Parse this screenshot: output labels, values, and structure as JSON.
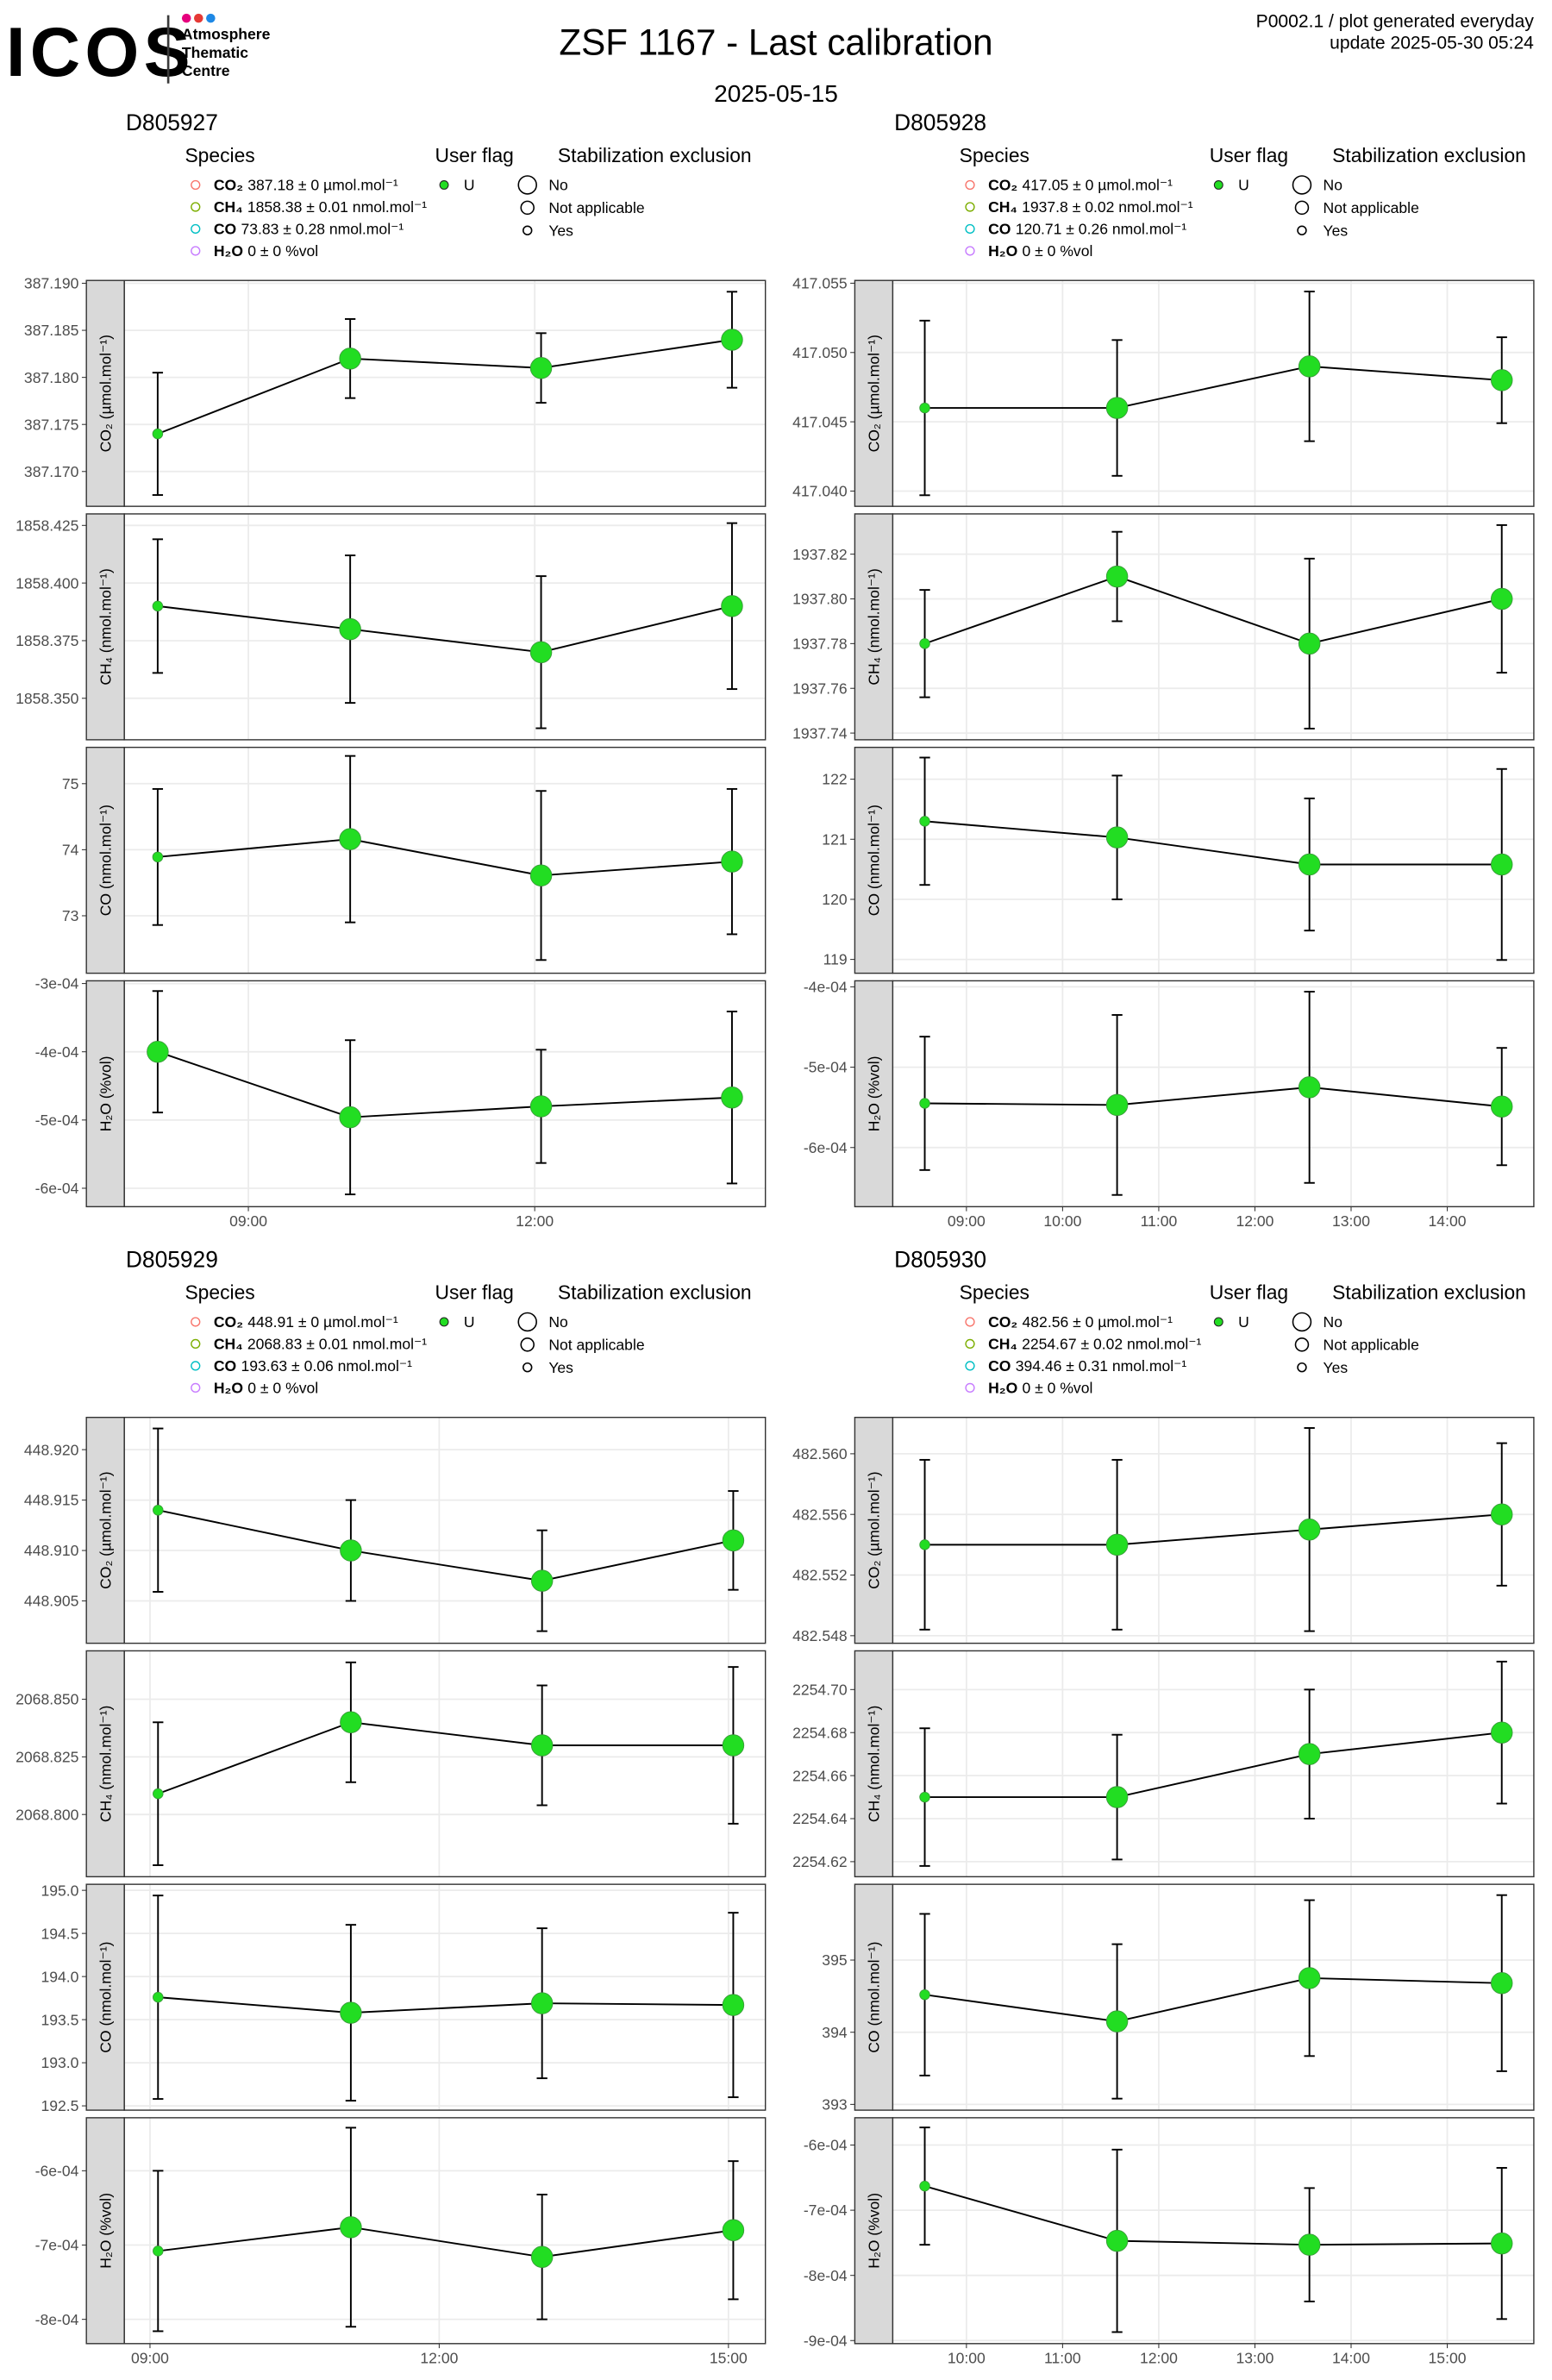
{
  "header": {
    "logo": "ICOS",
    "logo_sub": [
      "Atmosphere",
      "Thematic",
      "Centre"
    ],
    "title": "ZSF 1167 - Last calibration",
    "subtitle": "2025-05-15",
    "note": "P0002.1 / plot generated everyday",
    "update": "update  2025-05-30 05:24"
  },
  "chart_data": [
    {
      "type": "line",
      "title": "D805927",
      "legend": {
        "species_title": "Species",
        "species": [
          {
            "name": "CO₂",
            "text": "387.18 ± 0 µmol.mol⁻¹",
            "color": "#f8766d"
          },
          {
            "name": "CH₄",
            "text": "1858.38 ± 0.01 nmol.mol⁻¹",
            "color": "#7cae00"
          },
          {
            "name": "CO",
            "text": "73.83 ± 0.28 nmol.mol⁻¹",
            "color": "#00bfc4"
          },
          {
            "name": "H₂O",
            "text": "0 ± 0 %vol",
            "color": "#c77cff"
          }
        ],
        "flag_title": "User flag",
        "flags": [
          {
            "name": "U",
            "color": "#22dd22"
          }
        ],
        "exclusion_title": "Stabilization exclusion",
        "exclusion": [
          "No",
          "Not applicable",
          "Yes"
        ]
      },
      "x": [
        "08:03",
        "10:04",
        "12:04",
        "14:04"
      ],
      "xlim": [
        "07:42",
        "14:25"
      ],
      "xticks": [
        "09:00",
        "12:00"
      ],
      "grid": true,
      "panels": [
        {
          "ylabel": "CO₂ (µmol.mol⁻¹)",
          "ylim": [
            387.1663,
            387.1903
          ],
          "yticks": [
            {
              "value": 387.17,
              "label": "387.170"
            },
            387.175,
            {
              "value": 387.18,
              "label": "387.180"
            },
            387.185,
            {
              "value": 387.19,
              "label": "387.190"
            }
          ],
          "values": [
            387.174,
            387.182,
            387.181,
            387.184
          ],
          "errors": [
            0.0065,
            0.0042,
            0.0037,
            0.0051
          ],
          "exclusion": [
            "Yes",
            "No",
            "No",
            "No"
          ]
        },
        {
          "ylabel": "CH₄ (nmol.mol⁻¹)",
          "ylim": [
            1858.332,
            1858.43
          ],
          "yticks": [
            {
              "value": 1858.35,
              "label": "1858.350"
            },
            1858.375,
            {
              "value": 1858.4,
              "label": "1858.400"
            },
            1858.425
          ],
          "values": [
            1858.39,
            1858.38,
            1858.37,
            1858.39
          ],
          "errors": [
            0.029,
            0.032,
            0.033,
            0.036
          ],
          "exclusion": [
            "Yes",
            "No",
            "No",
            "No"
          ]
        },
        {
          "ylabel": "CO (nmol.mol⁻¹)",
          "ylim": [
            72.13,
            75.55
          ],
          "yticks": [
            73,
            74,
            75
          ],
          "values": [
            73.89,
            74.16,
            73.61,
            73.82
          ],
          "errors": [
            1.03,
            1.26,
            1.28,
            1.1
          ],
          "exclusion": [
            "Yes",
            "No",
            "No",
            "No"
          ]
        },
        {
          "ylabel": "H₂O (%vol)",
          "ylim": [
            -0.000627,
            -0.000296
          ],
          "yticks": [
            {
              "value": -0.0006,
              "label": "-6e-04"
            },
            {
              "value": -0.0005,
              "label": "-5e-04"
            },
            {
              "value": -0.0004,
              "label": "-4e-04"
            },
            {
              "value": -0.0003,
              "label": "-3e-04"
            }
          ],
          "values": [
            -0.0004,
            -0.000496,
            -0.00048,
            -0.000467
          ],
          "errors": [
            8.9e-05,
            0.000113,
            8.3e-05,
            0.000126
          ],
          "exclusion": [
            "No",
            "No",
            "No",
            "No"
          ]
        }
      ]
    },
    {
      "type": "line",
      "title": "D805928",
      "legend": {
        "species_title": "Species",
        "species": [
          {
            "name": "CO₂",
            "text": "417.05 ± 0 µmol.mol⁻¹",
            "color": "#f8766d"
          },
          {
            "name": "CH₄",
            "text": "1937.8 ± 0.02 nmol.mol⁻¹",
            "color": "#7cae00"
          },
          {
            "name": "CO",
            "text": "120.71 ± 0.26 nmol.mol⁻¹",
            "color": "#00bfc4"
          },
          {
            "name": "H₂O",
            "text": "0 ± 0 %vol",
            "color": "#c77cff"
          }
        ],
        "flag_title": "User flag",
        "flags": [
          {
            "name": "U",
            "color": "#22dd22"
          }
        ],
        "exclusion_title": "Stabilization exclusion",
        "exclusion": [
          "No",
          "Not applicable",
          "Yes"
        ]
      },
      "x": [
        "08:34",
        "10:34",
        "12:34",
        "14:34"
      ],
      "xlim": [
        "08:14",
        "14:54"
      ],
      "xticks": [
        "09:00",
        "10:00",
        "11:00",
        "12:00",
        "13:00",
        "14:00"
      ],
      "grid": true,
      "panels": [
        {
          "ylabel": "CO₂ (µmol.mol⁻¹)",
          "ylim": [
            417.0389,
            417.0552
          ],
          "yticks": [
            {
              "value": 417.04,
              "label": "417.040"
            },
            417.045,
            {
              "value": 417.05,
              "label": "417.050"
            },
            417.055
          ],
          "values": [
            417.046,
            417.046,
            417.049,
            417.048
          ],
          "errors": [
            0.0063,
            0.0049,
            0.0054,
            0.0031
          ],
          "exclusion": [
            "Yes",
            "No",
            "No",
            "No"
          ]
        },
        {
          "ylabel": "CH₄ (nmol.mol⁻¹)",
          "ylim": [
            1937.737,
            1937.838
          ],
          "yticks": [
            1937.74,
            1937.76,
            1937.78,
            {
              "value": 1937.8,
              "label": "1937.80"
            },
            1937.82
          ],
          "values": [
            1937.78,
            1937.81,
            1937.78,
            1937.8
          ],
          "errors": [
            0.024,
            0.02,
            0.038,
            0.033
          ],
          "exclusion": [
            "Yes",
            "No",
            "No",
            "No"
          ]
        },
        {
          "ylabel": "CO (nmol.mol⁻¹)",
          "ylim": [
            118.77,
            122.53
          ],
          "yticks": [
            119,
            120,
            121,
            122
          ],
          "values": [
            121.3,
            121.03,
            120.58,
            120.58
          ],
          "errors": [
            1.06,
            1.03,
            1.1,
            1.59
          ],
          "exclusion": [
            "Yes",
            "No",
            "No",
            "No"
          ]
        },
        {
          "ylabel": "H₂O (%vol)",
          "ylim": [
            -0.0006736,
            -0.0003925
          ],
          "yticks": [
            {
              "value": -0.0006,
              "label": "-6e-04"
            },
            {
              "value": -0.0005,
              "label": "-5e-04"
            },
            {
              "value": -0.0004,
              "label": "-4e-04"
            }
          ],
          "values": [
            -0.000545,
            -0.000547,
            -0.000525,
            -0.000549
          ],
          "errors": [
            8.3e-05,
            0.000112,
            0.000119,
            7.3e-05
          ],
          "exclusion": [
            "Yes",
            "No",
            "No",
            "No"
          ]
        }
      ]
    },
    {
      "type": "line",
      "title": "D805929",
      "legend": {
        "species_title": "Species",
        "species": [
          {
            "name": "CO₂",
            "text": "448.91 ± 0 µmol.mol⁻¹",
            "color": "#f8766d"
          },
          {
            "name": "CH₄",
            "text": "2068.83 ± 0.01 nmol.mol⁻¹",
            "color": "#7cae00"
          },
          {
            "name": "CO",
            "text": "193.63 ± 0.06 nmol.mol⁻¹",
            "color": "#00bfc4"
          },
          {
            "name": "H₂O",
            "text": "0 ± 0 %vol",
            "color": "#c77cff"
          }
        ],
        "flag_title": "User flag",
        "flags": [
          {
            "name": "U",
            "color": "#22dd22"
          }
        ],
        "exclusion_title": "Stabilization exclusion",
        "exclusion": [
          "No",
          "Not applicable",
          "Yes"
        ]
      },
      "x": [
        "09:05",
        "11:05",
        "13:04",
        "15:03"
      ],
      "xlim": [
        "08:44",
        "15:23"
      ],
      "xticks": [
        "09:00",
        "12:00",
        "15:00"
      ],
      "grid": true,
      "panels": [
        {
          "ylabel": "CO₂ (µmol.mol⁻¹)",
          "ylim": [
            448.9008,
            448.9232
          ],
          "yticks": [
            448.905,
            {
              "value": 448.91,
              "label": "448.910"
            },
            448.915,
            {
              "value": 448.92,
              "label": "448.920"
            }
          ],
          "values": [
            448.914,
            448.91,
            448.907,
            448.911
          ],
          "errors": [
            0.0081,
            0.005,
            0.005,
            0.0049
          ],
          "exclusion": [
            "Yes",
            "No",
            "No",
            "No"
          ]
        },
        {
          "ylabel": "CH₄ (nmol.mol⁻¹)",
          "ylim": [
            2068.773,
            2068.871
          ],
          "yticks": [
            {
              "value": 2068.8,
              "label": "2068.800"
            },
            2068.825,
            {
              "value": 2068.85,
              "label": "2068.850"
            }
          ],
          "values": [
            2068.809,
            2068.84,
            2068.83,
            2068.83
          ],
          "errors": [
            0.031,
            0.026,
            0.026,
            0.034
          ],
          "exclusion": [
            "Yes",
            "No",
            "No",
            "No"
          ]
        },
        {
          "ylabel": "CO (nmol.mol⁻¹)",
          "ylim": [
            192.45,
            195.07
          ],
          "yticks": [
            192.5,
            {
              "value": 193,
              "label": "193.0"
            },
            193.5,
            {
              "value": 194,
              "label": "194.0"
            },
            194.5,
            {
              "value": 195,
              "label": "195.0"
            }
          ],
          "values": [
            193.76,
            193.58,
            193.69,
            193.67
          ],
          "errors": [
            1.18,
            1.02,
            0.87,
            1.07
          ],
          "exclusion": [
            "Yes",
            "No",
            "No",
            "No"
          ]
        },
        {
          "ylabel": "H₂O (%vol)",
          "ylim": [
            -0.0008327,
            -0.0005286
          ],
          "yticks": [
            {
              "value": -0.0008,
              "label": "-8e-04"
            },
            {
              "value": -0.0007,
              "label": "-7e-04"
            },
            {
              "value": -0.0006,
              "label": "-6e-04"
            }
          ],
          "values": [
            -0.000708,
            -0.000676,
            -0.000716,
            -0.00068
          ],
          "errors": [
            0.000108,
            0.000134,
            8.4e-05,
            9.3e-05
          ],
          "exclusion": [
            "Yes",
            "No",
            "No",
            "No"
          ]
        }
      ]
    },
    {
      "type": "line",
      "title": "D805930",
      "legend": {
        "species_title": "Species",
        "species": [
          {
            "name": "CO₂",
            "text": "482.56 ± 0 µmol.mol⁻¹",
            "color": "#f8766d"
          },
          {
            "name": "CH₄",
            "text": "2254.67 ± 0.02 nmol.mol⁻¹",
            "color": "#7cae00"
          },
          {
            "name": "CO",
            "text": "394.46 ± 0.31 nmol.mol⁻¹",
            "color": "#00bfc4"
          },
          {
            "name": "H₂O",
            "text": "0 ± 0 %vol",
            "color": "#c77cff"
          }
        ],
        "flag_title": "User flag",
        "flags": [
          {
            "name": "U",
            "color": "#22dd22"
          }
        ],
        "exclusion_title": "Stabilization exclusion",
        "exclusion": [
          "No",
          "Not applicable",
          "Yes"
        ]
      },
      "x": [
        "09:34",
        "11:34",
        "13:34",
        "15:34"
      ],
      "xlim": [
        "09:14",
        "15:54"
      ],
      "xticks": [
        "10:00",
        "11:00",
        "12:00",
        "13:00",
        "14:00",
        "15:00"
      ],
      "grid": true,
      "panels": [
        {
          "ylabel": "CO₂ (µmol.mol⁻¹)",
          "ylim": [
            482.5475,
            482.5624
          ],
          "yticks": [
            482.548,
            482.552,
            482.556,
            {
              "value": 482.56,
              "label": "482.560"
            }
          ],
          "values": [
            482.554,
            482.554,
            482.555,
            482.556
          ],
          "errors": [
            0.0056,
            0.0056,
            0.0067,
            0.0047
          ],
          "exclusion": [
            "Yes",
            "No",
            "No",
            "No"
          ]
        },
        {
          "ylabel": "CH₄ (nmol.mol⁻¹)",
          "ylim": [
            2254.613,
            2254.718
          ],
          "yticks": [
            2254.62,
            2254.64,
            2254.66,
            2254.68,
            {
              "value": 2254.7,
              "label": "2254.70"
            }
          ],
          "values": [
            2254.65,
            2254.65,
            2254.67,
            2254.68
          ],
          "errors": [
            0.032,
            0.029,
            0.03,
            0.033
          ],
          "exclusion": [
            "Yes",
            "No",
            "No",
            "No"
          ]
        },
        {
          "ylabel": "CO (nmol.mol⁻¹)",
          "ylim": [
            392.92,
            396.05
          ],
          "yticks": [
            393,
            394,
            395
          ],
          "values": [
            394.52,
            394.15,
            394.75,
            394.68
          ],
          "errors": [
            1.12,
            1.07,
            1.08,
            1.22
          ],
          "exclusion": [
            "Yes",
            "No",
            "No",
            "No"
          ]
        },
        {
          "ylabel": "H₂O (%vol)",
          "ylim": [
            -0.0009047,
            -0.0005581
          ],
          "yticks": [
            {
              "value": -0.0009,
              "label": "-9e-04"
            },
            {
              "value": -0.0008,
              "label": "-8e-04"
            },
            {
              "value": -0.0007,
              "label": "-7e-04"
            },
            {
              "value": -0.0006,
              "label": "-6e-04"
            }
          ],
          "values": [
            -0.000663,
            -0.000747,
            -0.000753,
            -0.000751
          ],
          "errors": [
            9e-05,
            0.00014,
            8.7e-05,
            0.000116
          ],
          "exclusion": [
            "Yes",
            "No",
            "No",
            "No"
          ]
        }
      ]
    }
  ]
}
